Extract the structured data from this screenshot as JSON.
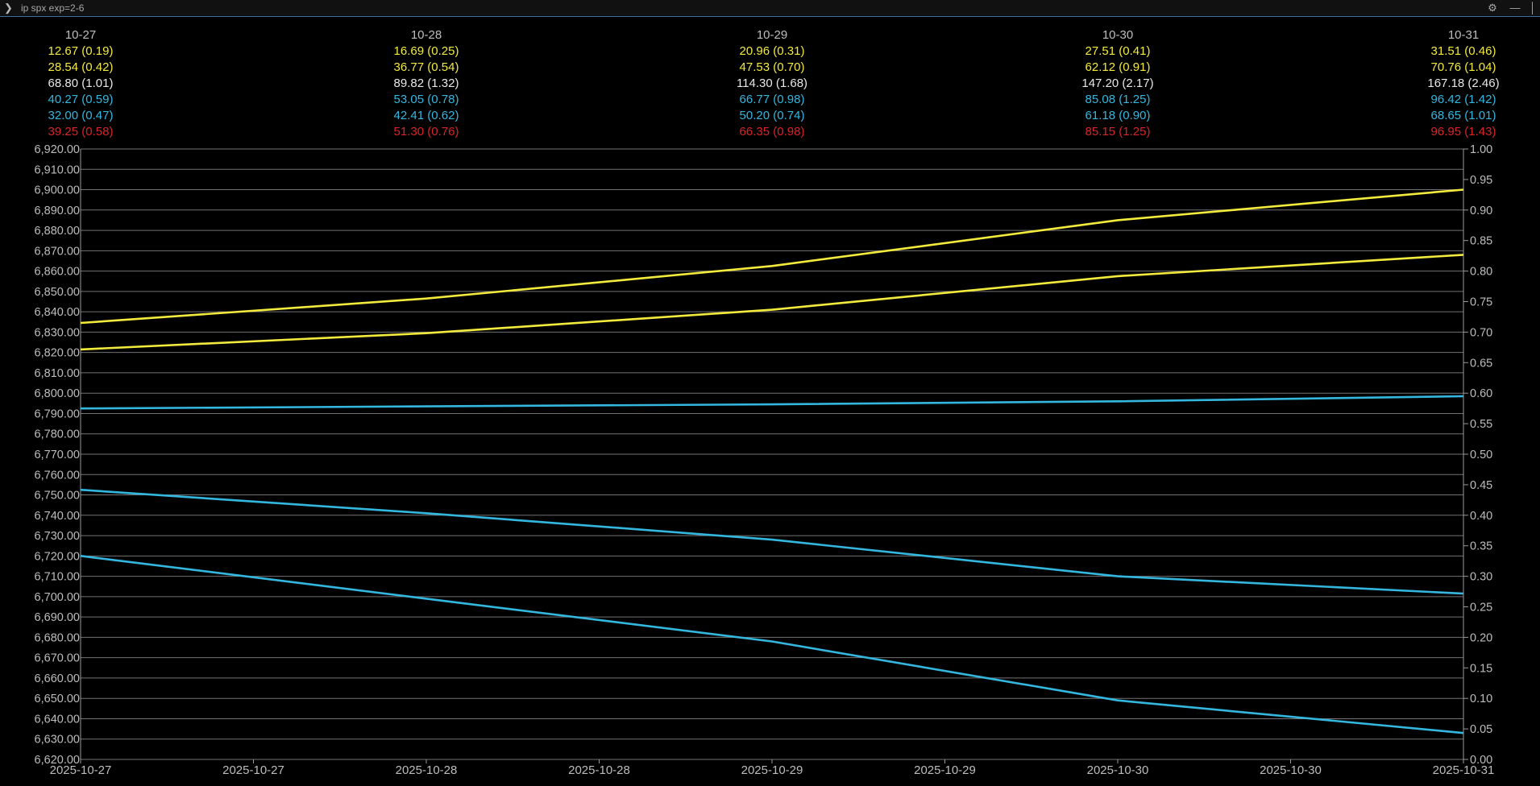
{
  "toolbar": {
    "command": "ip spx exp=2-6",
    "settings_icon": "gear-icon",
    "minimize_icon": "minimize-icon",
    "close_icon": "close-icon"
  },
  "colors": {
    "background": "#000000",
    "grid": "#9a9a9a",
    "axis_text": "#bdbdbd",
    "yellow": "#f2ea3c",
    "white": "#e8e8e8",
    "cyan": "#34b7df",
    "red": "#d8232a"
  },
  "chart_data": {
    "type": "line",
    "x": [
      "2025-10-27",
      "2025-10-28",
      "2025-10-29",
      "2025-10-30",
      "2025-10-31"
    ],
    "x_tick_labels": [
      "2025-10-27",
      "2025-10-27",
      "2025-10-28",
      "2025-10-28",
      "2025-10-29",
      "2025-10-29",
      "2025-10-30",
      "2025-10-30",
      "2025-10-31"
    ],
    "y_left": {
      "min": 6620,
      "max": 6920,
      "step": 10
    },
    "y_right": {
      "min": 0.0,
      "max": 1.0,
      "step": 0.05
    },
    "grid": true,
    "series": [
      {
        "color": "yellow",
        "values": [
          6834.5,
          6846.5,
          6862.5,
          6885,
          6900
        ]
      },
      {
        "color": "yellow",
        "values": [
          6821.5,
          6829.5,
          6841,
          6857.5,
          6868
        ]
      },
      {
        "color": "cyan",
        "values": [
          6792.5,
          6793.5,
          6794.5,
          6796,
          6798.5
        ]
      },
      {
        "color": "cyan",
        "values": [
          6752.5,
          6741,
          6728,
          6710,
          6701.5
        ]
      },
      {
        "color": "cyan",
        "values": [
          6720,
          6699,
          6678,
          6649,
          6633
        ]
      }
    ],
    "header_columns": [
      {
        "label": "10-27",
        "rows": [
          {
            "text": "12.67 (0.19)",
            "color": "yellow"
          },
          {
            "text": "28.54 (0.42)",
            "color": "yellow"
          },
          {
            "text": "68.80 (1.01)",
            "color": "white"
          },
          {
            "text": "40.27 (0.59)",
            "color": "cyan"
          },
          {
            "text": "32.00 (0.47)",
            "color": "cyan"
          },
          {
            "text": "39.25 (0.58)",
            "color": "red"
          }
        ]
      },
      {
        "label": "10-28",
        "rows": [
          {
            "text": "16.69 (0.25)",
            "color": "yellow"
          },
          {
            "text": "36.77 (0.54)",
            "color": "yellow"
          },
          {
            "text": "89.82 (1.32)",
            "color": "white"
          },
          {
            "text": "53.05 (0.78)",
            "color": "cyan"
          },
          {
            "text": "42.41 (0.62)",
            "color": "cyan"
          },
          {
            "text": "51.30 (0.76)",
            "color": "red"
          }
        ]
      },
      {
        "label": "10-29",
        "rows": [
          {
            "text": "20.96 (0.31)",
            "color": "yellow"
          },
          {
            "text": "47.53 (0.70)",
            "color": "yellow"
          },
          {
            "text": "114.30 (1.68)",
            "color": "white"
          },
          {
            "text": "66.77 (0.98)",
            "color": "cyan"
          },
          {
            "text": "50.20 (0.74)",
            "color": "cyan"
          },
          {
            "text": "66.35 (0.98)",
            "color": "red"
          }
        ]
      },
      {
        "label": "10-30",
        "rows": [
          {
            "text": "27.51 (0.41)",
            "color": "yellow"
          },
          {
            "text": "62.12 (0.91)",
            "color": "yellow"
          },
          {
            "text": "147.20 (2.17)",
            "color": "white"
          },
          {
            "text": "85.08 (1.25)",
            "color": "cyan"
          },
          {
            "text": "61.18 (0.90)",
            "color": "cyan"
          },
          {
            "text": "85.15 (1.25)",
            "color": "red"
          }
        ]
      },
      {
        "label": "10-31",
        "rows": [
          {
            "text": "31.51 (0.46)",
            "color": "yellow"
          },
          {
            "text": "70.76 (1.04)",
            "color": "yellow"
          },
          {
            "text": "167.18 (2.46)",
            "color": "white"
          },
          {
            "text": "96.42 (1.42)",
            "color": "cyan"
          },
          {
            "text": "68.65 (1.01)",
            "color": "cyan"
          },
          {
            "text": "96.95 (1.43)",
            "color": "red"
          }
        ]
      }
    ]
  }
}
